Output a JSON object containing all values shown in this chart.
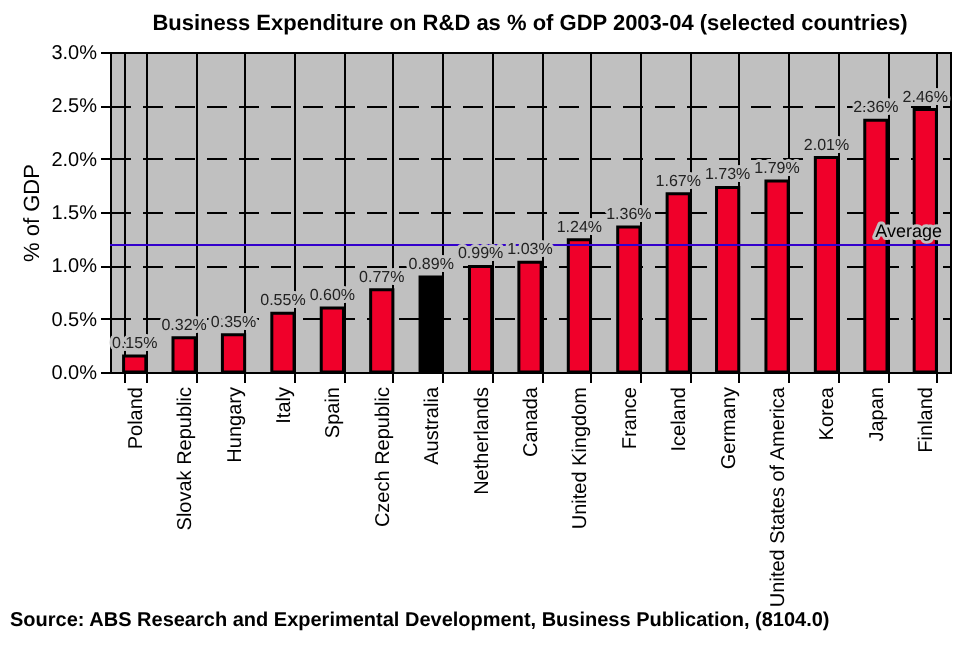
{
  "chart_data": {
    "type": "bar",
    "title": "Business Expenditure on R&D as % of GDP 2003-04 (selected countries)",
    "ylabel": "% of GDP",
    "categories": [
      "Poland",
      "Slovak Republic",
      "Hungary",
      "Italy",
      "Spain",
      "Czech Republic",
      "Australia",
      "Netherlands",
      "Canada",
      "United Kingdom",
      "France",
      "Iceland",
      "Germany",
      "United States of America",
      "Korea",
      "Japan",
      "Finland"
    ],
    "values": [
      0.15,
      0.32,
      0.35,
      0.55,
      0.6,
      0.77,
      0.89,
      0.99,
      1.03,
      1.24,
      1.36,
      1.67,
      1.73,
      1.79,
      2.01,
      2.36,
      2.46
    ],
    "value_labels": [
      "0.15%",
      "0.32%",
      "0.35%",
      "0.55%",
      "0.60%",
      "0.77%",
      "0.89%",
      "0.99%",
      "1.03%",
      "1.24%",
      "1.36%",
      "1.67%",
      "1.73%",
      "1.79%",
      "2.01%",
      "2.36%",
      "2.46%"
    ],
    "colors": [
      "#f0002a",
      "#f0002a",
      "#f0002a",
      "#f0002a",
      "#f0002a",
      "#f0002a",
      "#000000",
      "#f0002a",
      "#f0002a",
      "#f0002a",
      "#f0002a",
      "#f0002a",
      "#f0002a",
      "#f0002a",
      "#f0002a",
      "#f0002a",
      "#f0002a"
    ],
    "ylim": [
      0,
      3
    ],
    "yticks": [
      {
        "value": 0,
        "label": "0.0%"
      },
      {
        "value": 0.5,
        "label": "0.5%"
      },
      {
        "value": 1,
        "label": "1.0%"
      },
      {
        "value": 1.5,
        "label": "1.5%"
      },
      {
        "value": 2,
        "label": "2.0%"
      },
      {
        "value": 2.5,
        "label": "2.5%"
      },
      {
        "value": 3,
        "label": "3.0%"
      }
    ],
    "ref_lines": [
      {
        "axis": "y",
        "value": 1.19,
        "label": "Average",
        "color": "#3300cc"
      }
    ],
    "grid": true,
    "annotations": [
      "Source: ABS Research and Experimental Development, Business Publication, (8104.0)"
    ]
  }
}
